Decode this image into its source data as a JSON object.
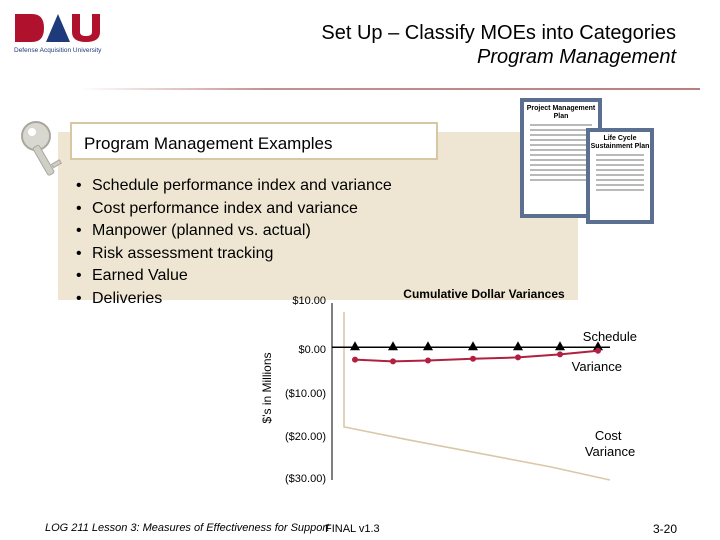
{
  "header": {
    "title_line1": "Set Up – Classify MOEs into Categories",
    "title_line2": "Program Management"
  },
  "logo": {
    "text": "DAU",
    "subtext": "Defense Acquisition University"
  },
  "examples": {
    "label": "Program Management Examples",
    "bullets": [
      "Schedule performance index and variance",
      "Cost performance index and variance",
      "Manpower (planned vs. actual)",
      "Risk assessment tracking",
      "Earned Value",
      "Deliveries"
    ]
  },
  "documents": [
    {
      "title": "Project Management Plan"
    },
    {
      "title": "Life Cycle Sustainment Plan"
    }
  ],
  "chart_data": {
    "type": "line",
    "title": "Cumulative Dollar Variances",
    "ylabel": "$'s in Millions",
    "ylim": [
      -30,
      10
    ],
    "yticks": [
      "$10.00",
      "$0.00",
      "($10.00)",
      "($20.00)",
      "($30.00)"
    ],
    "series": [
      {
        "name": "Schedule Variance",
        "values": [
          0,
          0,
          0,
          0,
          0,
          0,
          0
        ]
      },
      {
        "name": "Variance",
        "values": [
          -2.8,
          -3.2,
          -3.0,
          -2.6,
          -2.3,
          -1.6,
          -0.8
        ]
      },
      {
        "name": "Cost Variance",
        "values": [
          -18,
          -21,
          -24,
          -27,
          -30
        ]
      }
    ],
    "labels": {
      "schedule": "Schedule",
      "variance": "Variance",
      "cost": "Cost Variance"
    },
    "colors": {
      "schedule": "#000000",
      "variance": "#b02040",
      "cost": "#d8c8a8"
    }
  },
  "footer": {
    "course": "LOG 211 Lesson 3: Measures of Effectiveness for Support",
    "version": "FINAL v1.3",
    "page": "3-20"
  }
}
